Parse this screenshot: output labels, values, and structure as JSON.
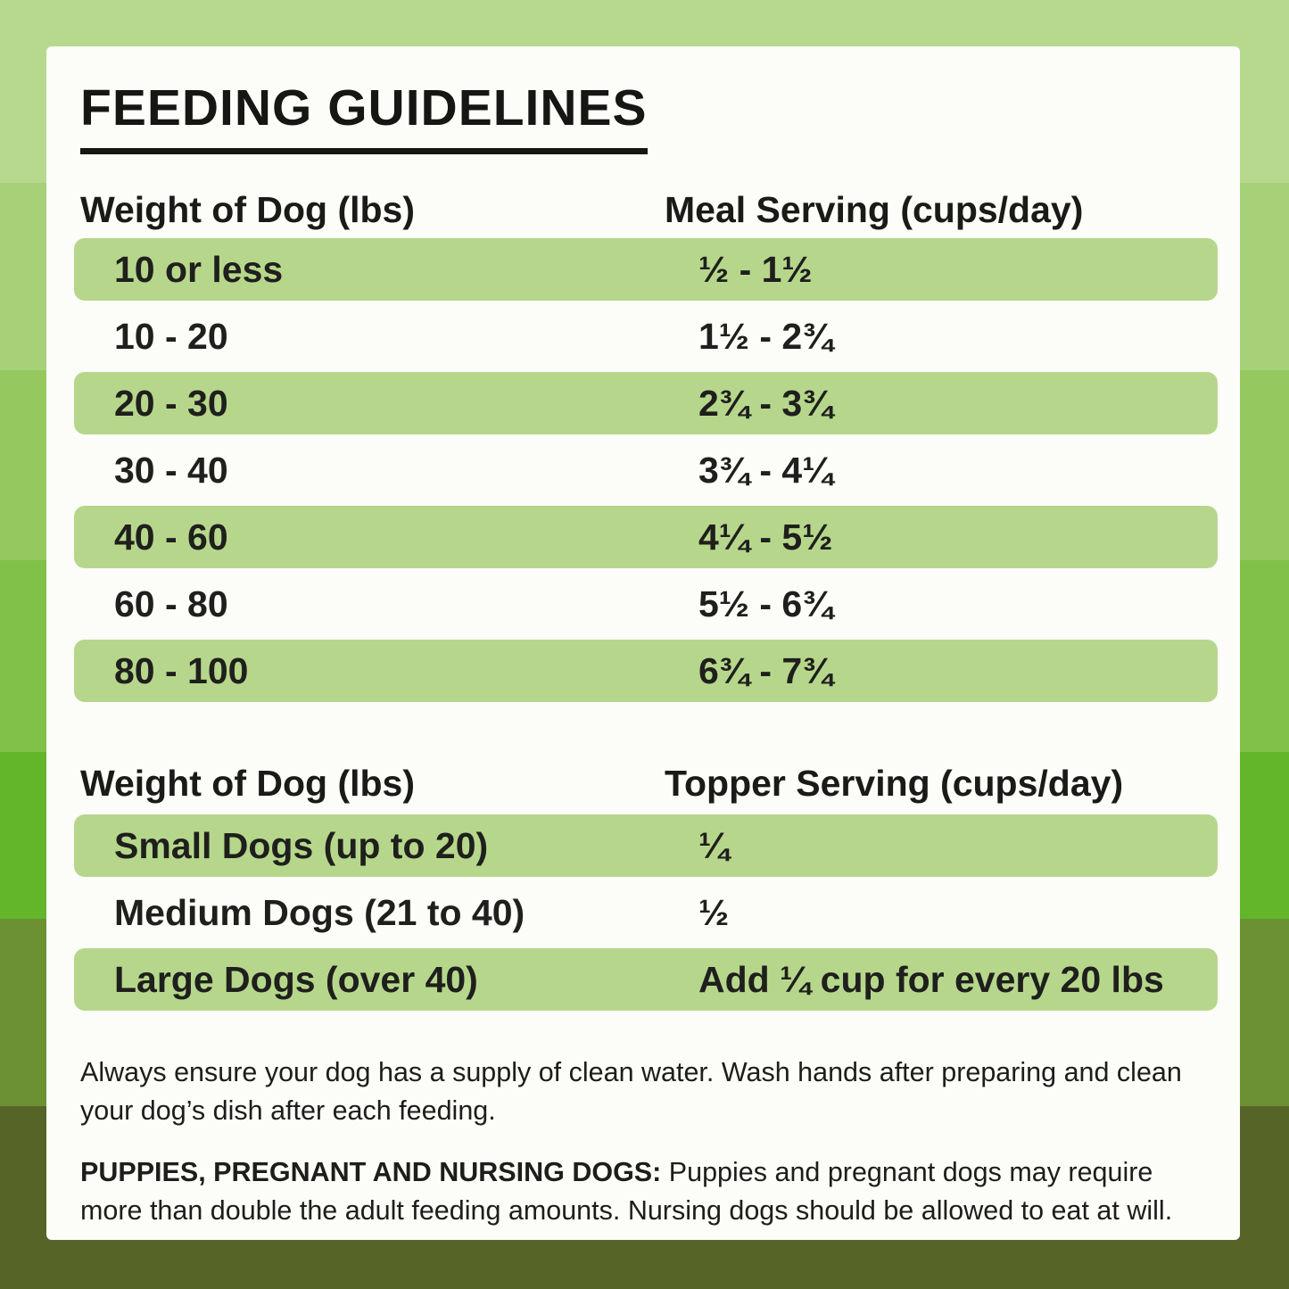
{
  "palette": {
    "bands": [
      "#b7d98d",
      "#a6d178",
      "#95c95f",
      "#80c247",
      "#63b52a",
      "#6b9132",
      "#566428"
    ],
    "card_bg": "#fcfcf9",
    "row_highlight": "#b6d78b",
    "text_dark": "#1d1d1b"
  },
  "title": "FEEDING GUIDELINES",
  "meal_table": {
    "col1_header": "Weight of Dog (lbs)",
    "col2_header": "Meal Serving (cups/day)",
    "rows": [
      [
        "10 or less",
        "½ - 1½"
      ],
      [
        "10 - 20",
        "1½ - 2¾"
      ],
      [
        "20 - 30",
        "2¾ - 3¾"
      ],
      [
        "30 - 40",
        "3¾ - 4¼"
      ],
      [
        "40 - 60",
        "4¼ - 5½"
      ],
      [
        "60 - 80",
        "5½ - 6¾"
      ],
      [
        "80 - 100",
        "6¾ - 7¾"
      ]
    ]
  },
  "topper_table": {
    "col1_header": "Weight of Dog (lbs)",
    "col2_header": "Topper Serving (cups/day)",
    "rows": [
      [
        "Small Dogs (up to 20)",
        "¼"
      ],
      [
        "Medium Dogs (21 to 40)",
        "½"
      ],
      [
        "Large Dogs (over 40)",
        "Add ¼ cup for every 20 lbs"
      ]
    ]
  },
  "notes": {
    "water": "Always ensure your dog has a supply of clean water. Wash hands after preparing and clean your dog’s dish after each feeding.",
    "puppies_label": "PUPPIES, PREGNANT AND NURSING DOGS:",
    "puppies_text": " Puppies and pregnant dogs may require more than double the adult feeding amounts. Nursing dogs should be allowed to eat at will."
  }
}
